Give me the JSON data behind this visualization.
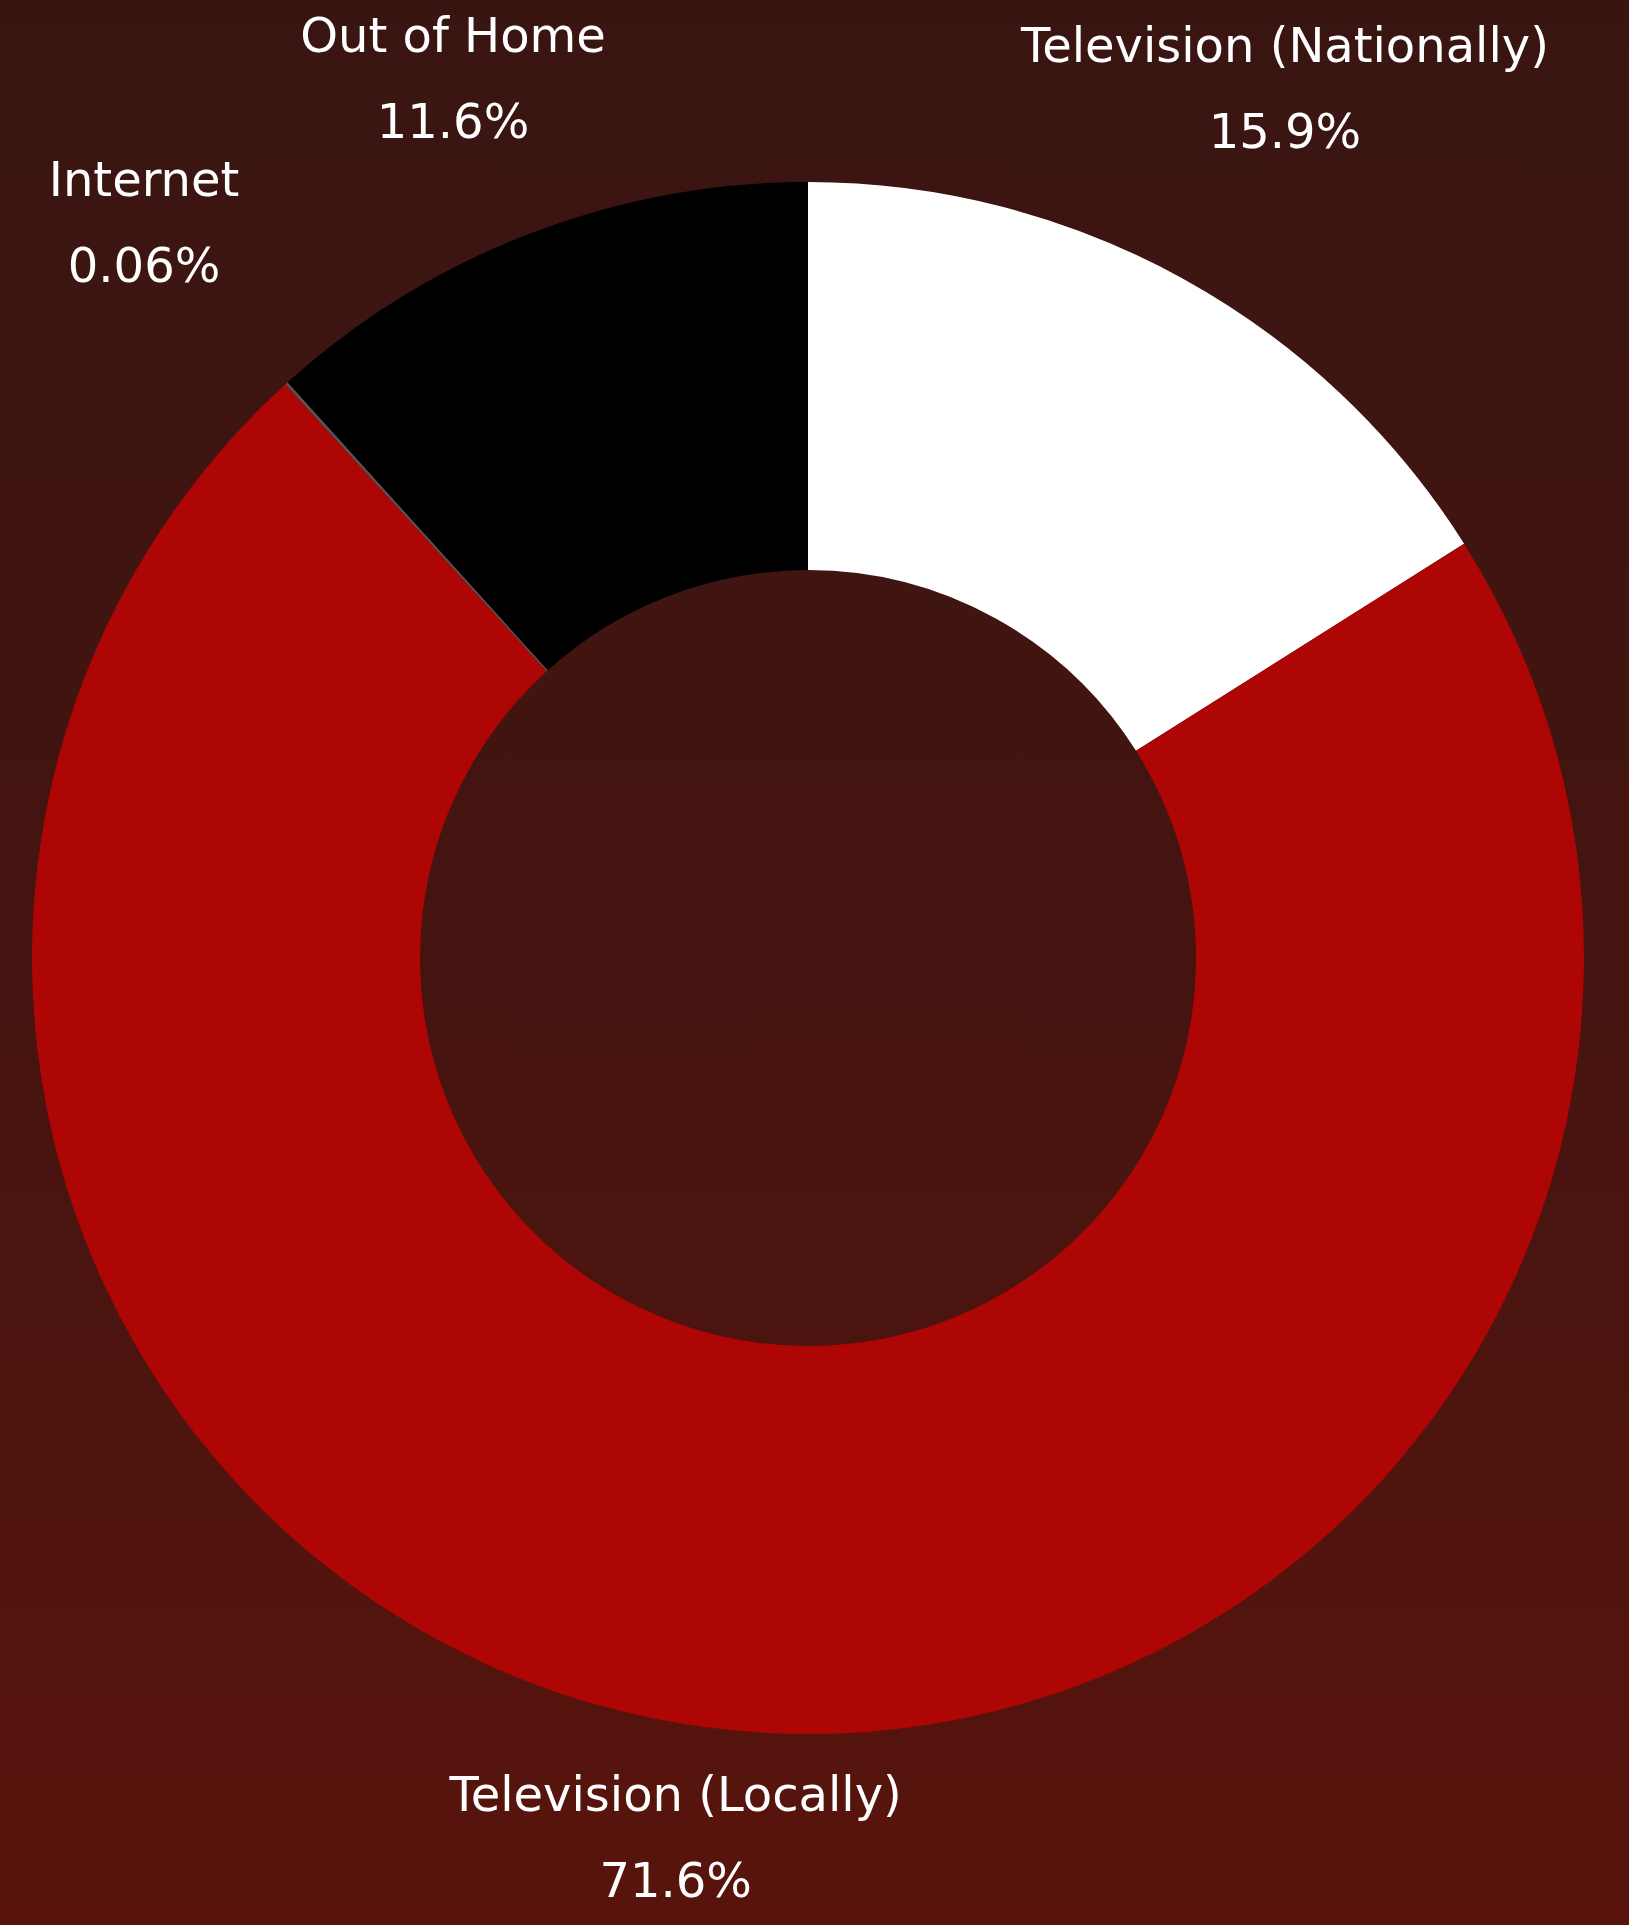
{
  "chart_data": {
    "type": "donut",
    "categories": [
      "Television (Nationally)",
      "Television (Locally)",
      "Internet",
      "Out of Home"
    ],
    "values": [
      15.9,
      71.6,
      0.06,
      11.6
    ],
    "colors": [
      "#ffffff",
      "#ae0505",
      "#555555",
      "#000000"
    ],
    "value_labels": [
      "15.9%",
      "71.6%",
      "0.06%",
      "11.6%"
    ],
    "legend": false
  }
}
